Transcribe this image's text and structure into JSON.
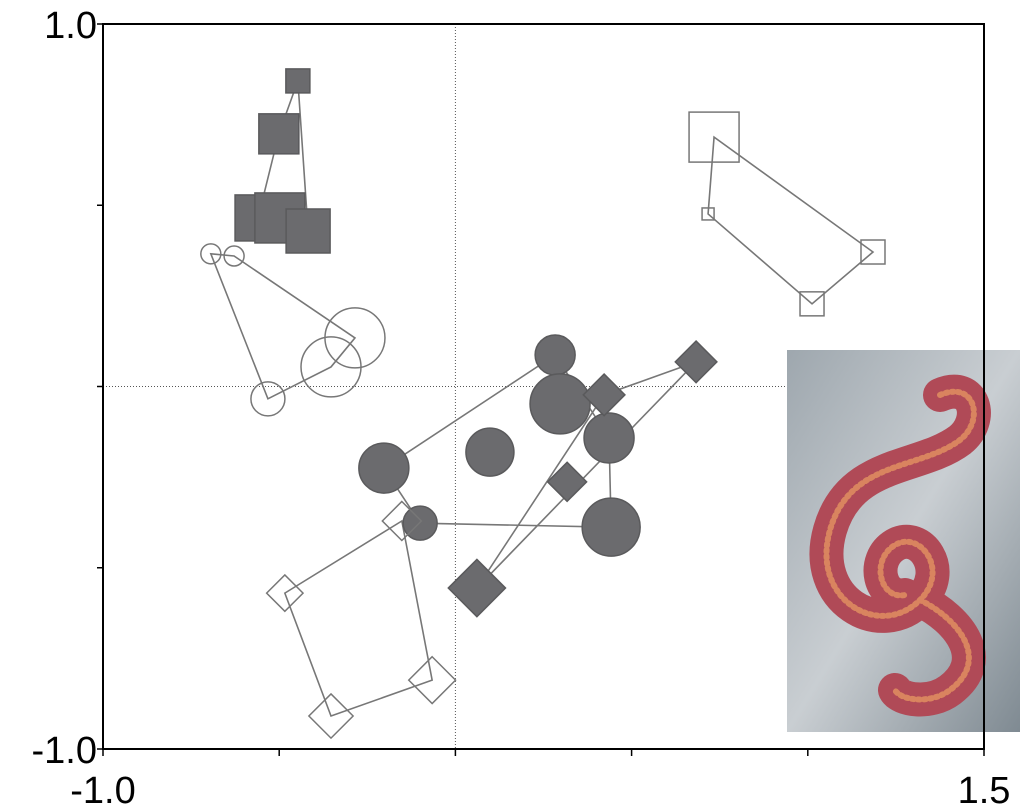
{
  "chart_data": {
    "type": "scatter",
    "xlim": [
      -1.0,
      1.5
    ],
    "ylim": [
      -1.0,
      1.0
    ],
    "xticks": [
      {
        "value": -1.0,
        "label": "-1.0"
      },
      {
        "value": 1.5,
        "label": "1.5"
      }
    ],
    "yticks": [
      {
        "value": -1.0,
        "label": "-1.0"
      },
      {
        "value": 1.0,
        "label": "1.0"
      }
    ],
    "x_minor_ticks": [
      -0.5,
      0,
      0.5,
      1.0
    ],
    "y_minor_ticks": [
      -0.5,
      0,
      0.5
    ],
    "zero_lines": true,
    "hulls": true,
    "series": [
      {
        "marker": "square",
        "filled": true,
        "color": "#6b6b6e",
        "x": [
          -0.447,
          -0.501,
          -0.56,
          -0.498,
          -0.418
        ],
        "y": [
          0.843,
          0.697,
          0.465,
          0.465,
          0.429
        ],
        "sizes": [
          2.4,
          4.0,
          4.6,
          5.0,
          4.4
        ]
      },
      {
        "marker": "circle",
        "filled": false,
        "color": "#777777",
        "x": [
          -0.694,
          -0.628,
          -0.285,
          -0.353,
          -0.532
        ],
        "y": [
          0.366,
          0.36,
          0.134,
          0.054,
          -0.034
        ],
        "sizes": [
          2.0,
          2.0,
          6.0,
          6.0,
          3.4
        ]
      },
      {
        "marker": "square",
        "filled": false,
        "color": "#777777",
        "x": [
          0.734,
          0.717,
          1.185,
          1.012
        ],
        "y": [
          0.688,
          0.476,
          0.371,
          0.228
        ],
        "sizes": [
          5.0,
          1.2,
          2.4,
          2.4
        ]
      },
      {
        "marker": "circle",
        "filled": true,
        "color": "#6b6b6e",
        "x": [
          0.283,
          -0.203,
          0.098,
          0.297,
          0.436,
          0.442,
          -0.1
        ],
        "y": [
          0.087,
          -0.225,
          -0.181,
          -0.048,
          -0.142,
          -0.388,
          -0.377
        ],
        "sizes": [
          4.0,
          5.0,
          4.8,
          6.0,
          5.0,
          5.8,
          3.4
        ]
      },
      {
        "marker": "diamond",
        "filled": true,
        "color": "#6b6b6e",
        "x": [
          0.683,
          0.422,
          0.317,
          0.061
        ],
        "y": [
          0.068,
          -0.023,
          -0.263,
          -0.556
        ],
        "sizes": [
          3.2,
          3.2,
          3.0,
          4.4
        ]
      },
      {
        "marker": "diamond",
        "filled": false,
        "color": "#777777",
        "x": [
          -0.152,
          -0.484,
          -0.353,
          -0.066
        ],
        "y": [
          -0.371,
          -0.57,
          -0.909,
          -0.81
        ],
        "sizes": [
          3.0,
          2.8,
          3.4,
          3.6
        ]
      }
    ]
  }
}
